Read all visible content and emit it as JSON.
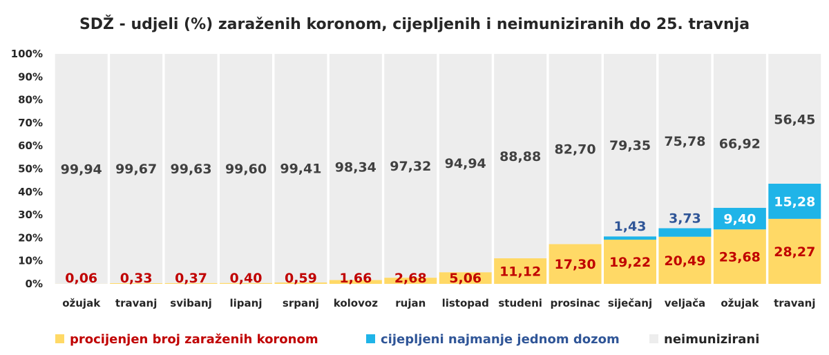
{
  "chart_data": {
    "type": "bar",
    "stacked": true,
    "title": "SDŽ - udjeli (%) zaraženih koronom, cijepljenih i neimuniziranih do 25. travnja",
    "xlabel": "",
    "ylabel": "",
    "ylim": [
      0,
      100
    ],
    "yticks": [
      "0%",
      "10%",
      "20%",
      "30%",
      "40%",
      "50%",
      "60%",
      "70%",
      "80%",
      "90%",
      "100%"
    ],
    "categories": [
      "ožujak",
      "travanj",
      "svibanj",
      "lipanj",
      "srpanj",
      "kolovoz",
      "rujan",
      "listopad",
      "studeni",
      "prosinac",
      "siječanj",
      "veljača",
      "ožujak",
      "travanj"
    ],
    "series": [
      {
        "name": "procijenjen broj zaraženih koronom",
        "color": "#FFD966",
        "label_color": "#C00000",
        "values": [
          0.06,
          0.33,
          0.37,
          0.4,
          0.59,
          1.66,
          2.68,
          5.06,
          11.12,
          17.3,
          19.22,
          20.49,
          23.68,
          28.27
        ],
        "labels": [
          "0,06",
          "0,33",
          "0,37",
          "0,40",
          "0,59",
          "1,66",
          "2,68",
          "5,06",
          "11,12",
          "17,30",
          "19,22",
          "20,49",
          "23,68",
          "28,27"
        ]
      },
      {
        "name": "cijepljeni najmanje jednom dozom",
        "color": "#1FB4E8",
        "label_color": "#2F5597",
        "values": [
          0,
          0,
          0,
          0,
          0,
          0,
          0,
          0,
          0,
          0,
          1.43,
          3.73,
          9.4,
          15.28
        ],
        "labels": [
          "",
          "",
          "",
          "",
          "",
          "",
          "",
          "",
          "",
          "",
          "1,43",
          "3,73",
          "9,40",
          "15,28"
        ]
      },
      {
        "name": "neimunizirani",
        "color": "#EDEDED",
        "label_color": "#404040",
        "values": [
          99.94,
          99.67,
          99.63,
          99.6,
          99.41,
          98.34,
          97.32,
          94.94,
          88.88,
          82.7,
          79.35,
          75.78,
          66.92,
          56.45
        ],
        "labels": [
          "99,94",
          "99,67",
          "99,63",
          "99,60",
          "99,41",
          "98,34",
          "97,32",
          "94,94",
          "88,88",
          "82,70",
          "79,35",
          "75,78",
          "66,92",
          "56,45"
        ]
      }
    ],
    "legend_position": "bottom",
    "grid": false
  }
}
